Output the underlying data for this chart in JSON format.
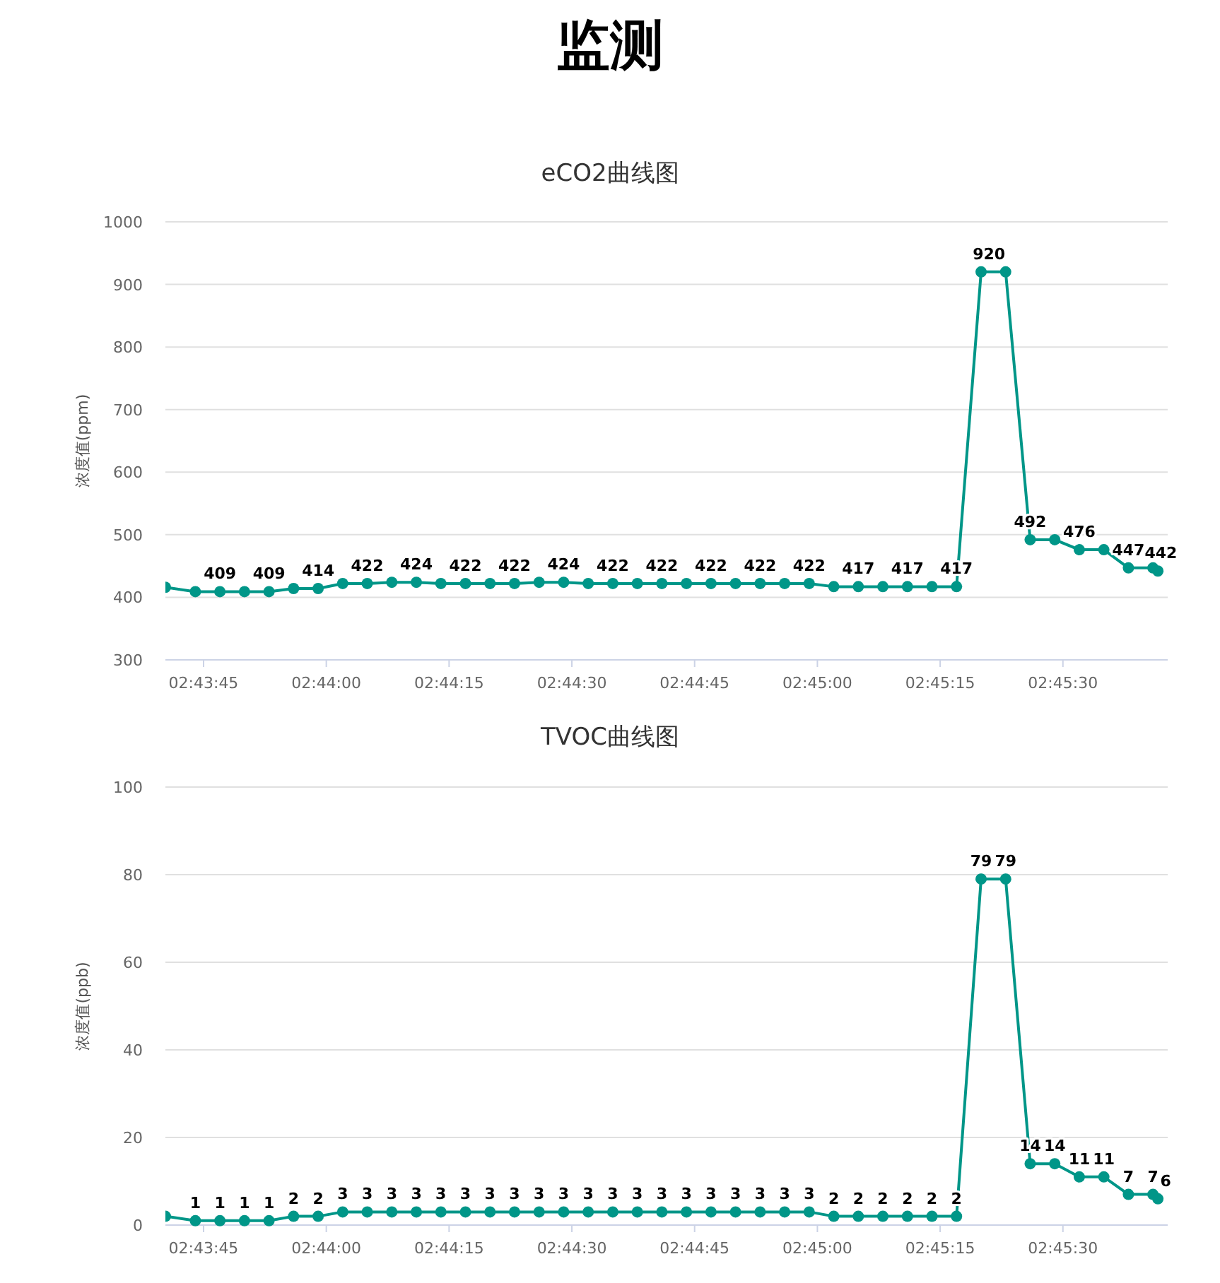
{
  "chart_data": [
    {
      "type": "line",
      "title": "监测",
      "subtitle": "eCO2曲线图",
      "ylabel": "浓度值(ppm)",
      "xlim": [
        2.727872,
        2.761889
      ],
      "ylim": [
        300,
        1000
      ],
      "yticks": [
        300,
        400,
        500,
        600,
        700,
        800,
        900,
        1000
      ],
      "xticks": [
        {
          "value": 2.729167,
          "label": "02:43:45"
        },
        {
          "value": 2.733333,
          "label": "02:44:00"
        },
        {
          "value": 2.7375,
          "label": "02:44:15"
        },
        {
          "value": 2.741667,
          "label": "02:44:30"
        },
        {
          "value": 2.745833,
          "label": "02:44:45"
        },
        {
          "value": 2.75,
          "label": "02:45:00"
        },
        {
          "value": 2.754167,
          "label": "02:45:15"
        },
        {
          "value": 2.758333,
          "label": "02:45:30"
        }
      ],
      "x": [
        2.727872,
        2.728889,
        2.729722,
        2.730556,
        2.731389,
        2.732222,
        2.733056,
        2.733889,
        2.734722,
        2.735556,
        2.736389,
        2.737222,
        2.738056,
        2.738889,
        2.739722,
        2.740556,
        2.741389,
        2.742222,
        2.743056,
        2.743889,
        2.744722,
        2.745556,
        2.746389,
        2.747222,
        2.748056,
        2.748889,
        2.749722,
        2.750556,
        2.751389,
        2.752222,
        2.753056,
        2.753889,
        2.754722,
        2.755556,
        2.756389,
        2.757222,
        2.758056,
        2.758889,
        2.759722,
        2.760556,
        2.761389,
        2.761556
      ],
      "series": [
        {
          "color": "#009688",
          "values": [
            416,
            409,
            409,
            409,
            409,
            414,
            414,
            422,
            422,
            424,
            424,
            422,
            422,
            422,
            422,
            424,
            424,
            422,
            422,
            422,
            422,
            422,
            422,
            422,
            422,
            422,
            422,
            417,
            417,
            417,
            417,
            417,
            417,
            920,
            920,
            492,
            492,
            476,
            476,
            447,
            447,
            442
          ],
          "value_labels": [
            null,
            null,
            "409",
            null,
            "409",
            null,
            "414",
            null,
            "422",
            null,
            "424",
            null,
            "422",
            null,
            "422",
            null,
            "424",
            null,
            "422",
            null,
            "422",
            null,
            "422",
            null,
            "422",
            null,
            "422",
            null,
            "417",
            null,
            "417",
            null,
            "417",
            "920",
            null,
            "492",
            null,
            "476",
            null,
            "447",
            null,
            "442"
          ]
        }
      ],
      "marker": "circle",
      "grid": "y"
    },
    {
      "type": "line",
      "title": "TVOC曲线图",
      "ylabel": "浓度值(ppb)",
      "xlim": [
        2.727872,
        2.761889
      ],
      "ylim": [
        0,
        100
      ],
      "yticks": [
        0,
        20,
        40,
        60,
        80,
        100
      ],
      "xticks": [
        {
          "value": 2.729167,
          "label": "02:43:45"
        },
        {
          "value": 2.733333,
          "label": "02:44:00"
        },
        {
          "value": 2.7375,
          "label": "02:44:15"
        },
        {
          "value": 2.741667,
          "label": "02:44:30"
        },
        {
          "value": 2.745833,
          "label": "02:44:45"
        },
        {
          "value": 2.75,
          "label": "02:45:00"
        },
        {
          "value": 2.754167,
          "label": "02:45:15"
        },
        {
          "value": 2.758333,
          "label": "02:45:30"
        }
      ],
      "x": [
        2.727872,
        2.728889,
        2.729722,
        2.730556,
        2.731389,
        2.732222,
        2.733056,
        2.733889,
        2.734722,
        2.735556,
        2.736389,
        2.737222,
        2.738056,
        2.738889,
        2.739722,
        2.740556,
        2.741389,
        2.742222,
        2.743056,
        2.743889,
        2.744722,
        2.745556,
        2.746389,
        2.747222,
        2.748056,
        2.748889,
        2.749722,
        2.750556,
        2.751389,
        2.752222,
        2.753056,
        2.753889,
        2.754722,
        2.755556,
        2.756389,
        2.757222,
        2.758056,
        2.758889,
        2.759722,
        2.760556,
        2.761389,
        2.761556
      ],
      "series": [
        {
          "color": "#009688",
          "values": [
            2,
            1,
            1,
            1,
            1,
            2,
            2,
            3,
            3,
            3,
            3,
            3,
            3,
            3,
            3,
            3,
            3,
            3,
            3,
            3,
            3,
            3,
            3,
            3,
            3,
            3,
            3,
            2,
            2,
            2,
            2,
            2,
            2,
            79,
            79,
            14,
            14,
            11,
            11,
            7,
            7,
            6
          ],
          "value_labels": [
            null,
            "1",
            "1",
            "1",
            "1",
            "2",
            "2",
            "3",
            "3",
            "3",
            "3",
            "3",
            "3",
            "3",
            "3",
            "3",
            "3",
            "3",
            "3",
            "3",
            "3",
            "3",
            "3",
            "3",
            "3",
            "3",
            "3",
            "2",
            "2",
            "2",
            "2",
            "2",
            "2",
            "79",
            "79",
            "14",
            "14",
            "11",
            "11",
            "7",
            "7",
            "6"
          ]
        }
      ],
      "marker": "circle",
      "grid": "y"
    }
  ]
}
